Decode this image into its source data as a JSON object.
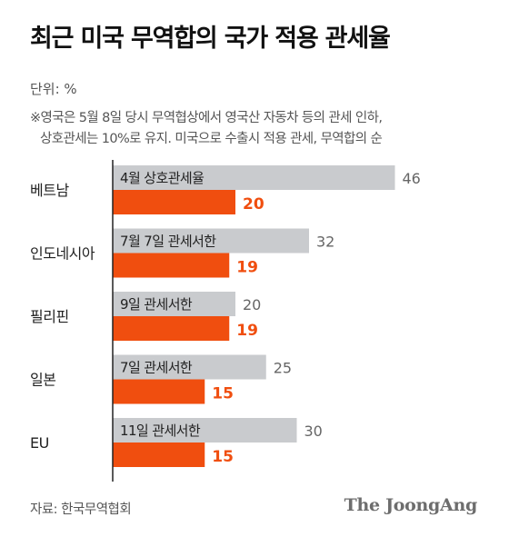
{
  "title": "최근 미국 무역합의 국가 적용 관세율",
  "unit": "단위: %",
  "note_line1": "※영국은 5월 8일 당시 무역협상에서 영국산 자동차 등의 관세 인하,",
  "note_line2": "상호관세는 10%로 유지. 미국으로 수출시 적용 관세, 무역합의 순",
  "source": "자료: 한국무역협회",
  "brand": "The JoongAng",
  "colors": {
    "gray_bar": "#c9cbce",
    "orange_bar": "#f04e0f",
    "gray_value": "#666666",
    "axis": "#222222",
    "bar_label": "#222222"
  },
  "chart_data": {
    "type": "bar",
    "orientation": "horizontal",
    "categories": [
      "베트남",
      "인도네시아",
      "필리핀",
      "일본",
      "EU"
    ],
    "series": [
      {
        "color": "#c9cbce",
        "values": [
          46,
          32,
          20,
          25,
          30
        ],
        "bar_labels": [
          "4월 상호관세율",
          "7월 7일 관세서한",
          "9일 관세서한",
          "7일 관세서한",
          "11일 관세서한"
        ]
      },
      {
        "color": "#f04e0f",
        "values": [
          20,
          19,
          19,
          15,
          15
        ]
      }
    ]
  }
}
